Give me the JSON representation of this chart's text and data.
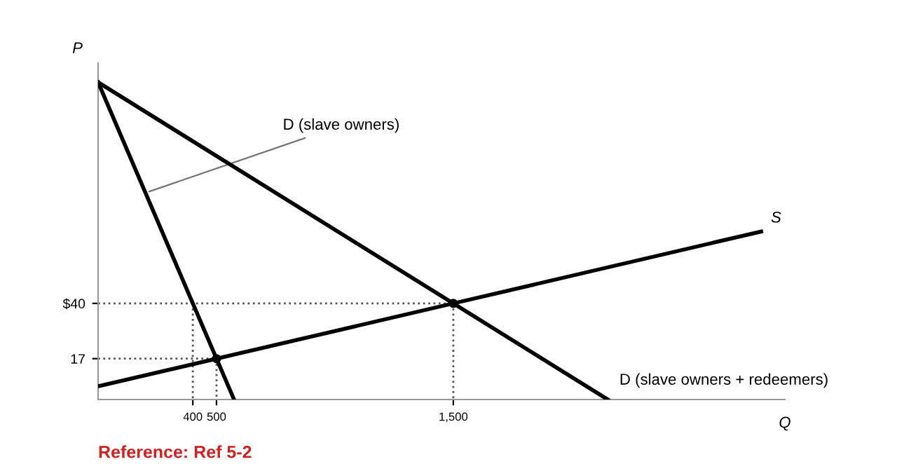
{
  "chart_data": {
    "type": "line",
    "xlabel": "Q",
    "ylabel": "P",
    "xlim": [
      0,
      2900
    ],
    "ylim": [
      0,
      140
    ],
    "xticks": [
      400,
      500,
      {
        "value": 1500,
        "label": "1,500"
      }
    ],
    "yticks": [
      17,
      {
        "value": 40,
        "label": "$40"
      }
    ],
    "grid": false,
    "legend": false,
    "marker": "none",
    "series": [
      {
        "name": "D (slave owners)",
        "color": "#000000",
        "x": [
          0,
          400,
          500,
          574
        ],
        "values": [
          132,
          40,
          17,
          0
        ],
        "line_style": "solid"
      },
      {
        "name": "D (slave owners + redeemers)",
        "color": "#000000",
        "x": [
          0,
          1500,
          2152
        ],
        "values": [
          132,
          40,
          0
        ],
        "line_style": "solid"
      },
      {
        "name": "S",
        "color": "#000000",
        "x": [
          0,
          500,
          1500,
          2800
        ],
        "values": [
          5.5,
          17,
          40,
          69.9
        ],
        "line_style": "solid"
      },
      {
        "color": "#555555",
        "x": [
          0,
          1500
        ],
        "values": [
          40,
          40
        ],
        "line_style": "dotted"
      },
      {
        "color": "#555555",
        "x": [
          1500,
          1500
        ],
        "values": [
          40,
          0
        ],
        "line_style": "dotted"
      },
      {
        "color": "#555555",
        "x": [
          400,
          400
        ],
        "values": [
          40,
          0
        ],
        "line_style": "dotted"
      },
      {
        "color": "#555555",
        "x": [
          0,
          500
        ],
        "values": [
          17,
          17
        ],
        "line_style": "dotted"
      },
      {
        "color": "#555555",
        "x": [
          500,
          500
        ],
        "values": [
          17,
          0
        ],
        "line_style": "dotted"
      },
      {
        "type": "scatter",
        "color": "#000000",
        "x": [
          500,
          1500
        ],
        "values": [
          17,
          40
        ],
        "marker": "circle"
      }
    ],
    "annotations": [
      "Reference: Ref 5-2"
    ]
  }
}
